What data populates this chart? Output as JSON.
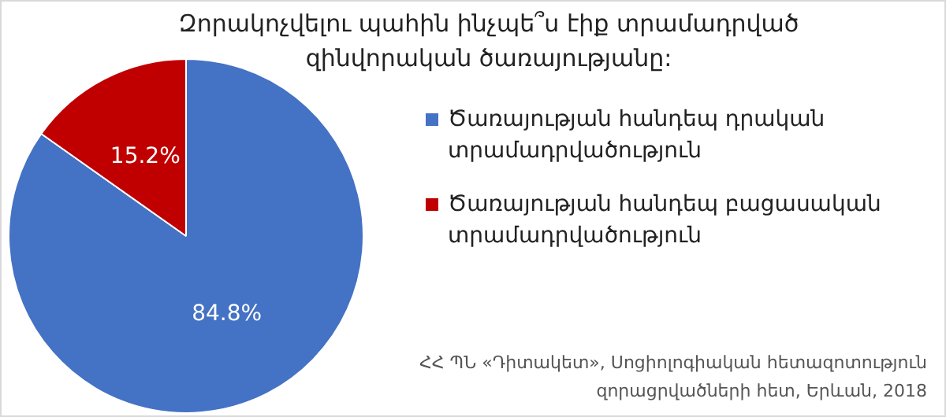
{
  "chart_data": {
    "type": "pie",
    "title": "Զորակոչվելու պահին ինչպե՞ս էիք տրամադրված զինվորական ծառայությանը:",
    "categories": [
      "Ծառայության հանդեպ դրական տրամադրվածություն",
      "Ծառայության հանդեպ բացասական տրամադրվածություն"
    ],
    "values": [
      84.8,
      15.2
    ],
    "colors": [
      "#4472c4",
      "#c00000"
    ],
    "value_labels": [
      "84.8%",
      "15.2%"
    ],
    "legend": "right",
    "annotations": [
      "ՀՀ ՊՆ «Դիտակետ», Սոցիոլոգիական հետազոտություն զորացրվածների հետ, Երևան, 2018"
    ]
  }
}
